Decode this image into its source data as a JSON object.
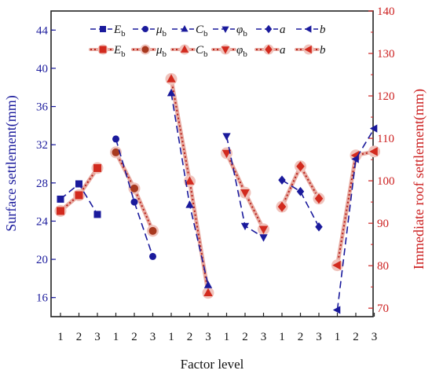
{
  "chart_data": {
    "type": "line",
    "xlabel": "Factor level",
    "ylabel_left": "Surface settlement(mm)",
    "ylabel_right": "Immediate roof settlement(mm)",
    "ylim_left": [
      14,
      46
    ],
    "ylim_right": [
      68,
      140
    ],
    "yticks_left": [
      "16",
      "20",
      "24",
      "28",
      "32",
      "36",
      "40",
      "44"
    ],
    "yticks_right": [
      "70",
      "80",
      "90",
      "100",
      "110",
      "120",
      "130",
      "140"
    ],
    "x_tick_labels": [
      "1",
      "2",
      "3",
      "1",
      "2",
      "3",
      "1",
      "2",
      "3",
      "1",
      "2",
      "3",
      "1",
      "2",
      "3",
      "1",
      "2",
      "3"
    ],
    "groups": [
      "Eb",
      "μb",
      "Cb",
      "φb",
      "a",
      "b"
    ],
    "left_color": "#1a1a9c",
    "right_color": "#cc1f1f",
    "surface_series": [
      {
        "name": "Eb",
        "marker": "square",
        "values": [
          26.3,
          27.9,
          24.7
        ]
      },
      {
        "name": "μb",
        "marker": "circle",
        "values": [
          32.6,
          26.0,
          20.3
        ]
      },
      {
        "name": "Cb",
        "marker": "triangle-up",
        "values": [
          37.4,
          25.7,
          17.3
        ]
      },
      {
        "name": "φb",
        "marker": "triangle-down",
        "values": [
          32.9,
          23.5,
          22.3
        ]
      },
      {
        "name": "a",
        "marker": "diamond",
        "values": [
          28.3,
          27.1,
          23.4
        ]
      },
      {
        "name": "b",
        "marker": "triangle-left",
        "values": [
          14.7,
          30.5,
          33.7
        ]
      }
    ],
    "roof_series": [
      {
        "name": "Eb",
        "marker": "square",
        "values": [
          92.9,
          96.6,
          103.0
        ]
      },
      {
        "name": "μb",
        "marker": "circle",
        "values": [
          106.7,
          98.2,
          88.2
        ]
      },
      {
        "name": "Cb",
        "marker": "triangle-up",
        "values": [
          124.0,
          99.9,
          73.6
        ]
      },
      {
        "name": "φb",
        "marker": "triangle-down",
        "values": [
          106.5,
          97.2,
          88.6
        ]
      },
      {
        "name": "a",
        "marker": "diamond",
        "values": [
          93.9,
          103.4,
          95.8
        ]
      },
      {
        "name": "b",
        "marker": "triangle-left",
        "values": [
          80.1,
          106.0,
          106.9
        ]
      }
    ],
    "legend": {
      "position": "top",
      "row1": [
        {
          "main": "E",
          "sub": "b",
          "marker": "square"
        },
        {
          "main": "μ",
          "sub": "b",
          "marker": "circle"
        },
        {
          "main": "C",
          "sub": "b",
          "marker": "triangle-up"
        },
        {
          "main": "φ",
          "sub": "b",
          "marker": "triangle-down"
        },
        {
          "main": "a",
          "sub": "",
          "marker": "diamond"
        },
        {
          "main": "b",
          "sub": "",
          "marker": "triangle-left"
        }
      ],
      "row2": [
        {
          "main": "E",
          "sub": "b",
          "marker": "square"
        },
        {
          "main": "μ",
          "sub": "b",
          "marker": "circle"
        },
        {
          "main": "C",
          "sub": "b",
          "marker": "triangle-up"
        },
        {
          "main": "φ",
          "sub": "b",
          "marker": "triangle-down"
        },
        {
          "main": "a",
          "sub": "",
          "marker": "diamond"
        },
        {
          "main": "b",
          "sub": "",
          "marker": "triangle-left"
        }
      ]
    }
  }
}
